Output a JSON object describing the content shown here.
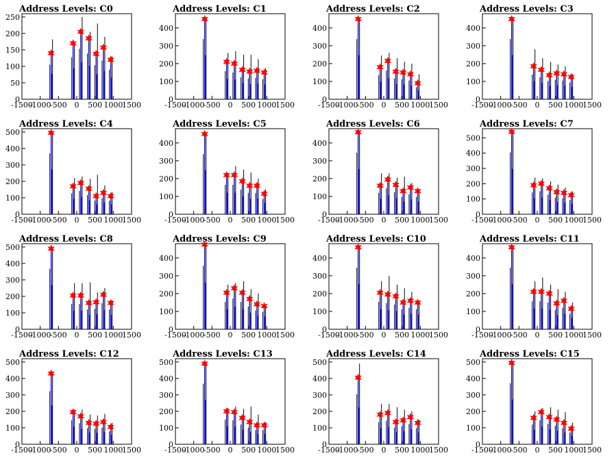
{
  "chart_data": [
    {
      "type": "bar",
      "title": "Address Levels: C0",
      "ylim": [
        0,
        260
      ],
      "yticks": [
        0,
        50,
        100,
        150,
        200,
        250
      ],
      "xlim": [
        -1500,
        1500
      ],
      "xticks": [
        -1500,
        -1000,
        -500,
        0,
        500,
        1000,
        1500
      ],
      "series": [
        {
          "x": [
            -700,
            -100,
            110,
            330,
            530,
            730,
            930
          ],
          "values": [
            140,
            170,
            205,
            185,
            138,
            157,
            120
          ],
          "spike": [
            182,
            175,
            250,
            205,
            230,
            190,
            130
          ]
        }
      ]
    },
    {
      "type": "bar",
      "title": "Address Levels: C1",
      "ylim": [
        0,
        480
      ],
      "yticks": [
        0,
        100,
        200,
        300,
        400
      ],
      "xlim": [
        -1500,
        1500
      ],
      "xticks": [
        -1500,
        -1000,
        -500,
        0,
        500,
        1000,
        1500
      ],
      "series": [
        {
          "x": [
            -700,
            -100,
            110,
            330,
            530,
            730,
            930
          ],
          "values": [
            450,
            210,
            200,
            165,
            155,
            160,
            150
          ],
          "spike": [
            460,
            260,
            270,
            250,
            250,
            225,
            175
          ]
        }
      ]
    },
    {
      "type": "bar",
      "title": "Address Levels: C2",
      "ylim": [
        0,
        480
      ],
      "yticks": [
        0,
        100,
        200,
        300,
        400
      ],
      "xlim": [
        -1500,
        1500
      ],
      "xticks": [
        -1500,
        -1000,
        -500,
        0,
        500,
        1000,
        1500
      ],
      "series": [
        {
          "x": [
            -700,
            -100,
            110,
            330,
            530,
            730,
            930
          ],
          "values": [
            450,
            180,
            215,
            155,
            150,
            140,
            90
          ],
          "spike": [
            460,
            245,
            260,
            230,
            210,
            200,
            140
          ]
        }
      ]
    },
    {
      "type": "bar",
      "title": "Address Levels: C3",
      "ylim": [
        0,
        480
      ],
      "yticks": [
        0,
        100,
        200,
        300,
        400
      ],
      "xlim": [
        -1500,
        1500
      ],
      "xticks": [
        -1500,
        -1000,
        -500,
        0,
        500,
        1000,
        1500
      ],
      "series": [
        {
          "x": [
            -700,
            -100,
            110,
            330,
            530,
            730,
            930
          ],
          "values": [
            450,
            185,
            165,
            135,
            145,
            140,
            125
          ],
          "spike": [
            460,
            280,
            230,
            210,
            195,
            185,
            140
          ]
        }
      ]
    },
    {
      "type": "bar",
      "title": "Address Levels: C4",
      "ylim": [
        0,
        520
      ],
      "yticks": [
        0,
        100,
        200,
        300,
        400,
        500
      ],
      "xlim": [
        -1500,
        1500
      ],
      "xticks": [
        -1500,
        -1000,
        -500,
        0,
        500,
        1000,
        1500
      ],
      "series": [
        {
          "x": [
            -700,
            -100,
            110,
            330,
            530,
            730,
            930
          ],
          "values": [
            495,
            170,
            190,
            155,
            110,
            130,
            110
          ],
          "spike": [
            500,
            220,
            230,
            215,
            240,
            175,
            135
          ]
        }
      ]
    },
    {
      "type": "bar",
      "title": "Address Levels: C5",
      "ylim": [
        0,
        480
      ],
      "yticks": [
        0,
        100,
        200,
        300,
        400
      ],
      "xlim": [
        -1500,
        1500
      ],
      "xticks": [
        -1500,
        -1000,
        -500,
        0,
        500,
        1000,
        1500
      ],
      "series": [
        {
          "x": [
            -700,
            -100,
            110,
            330,
            530,
            730,
            930
          ],
          "values": [
            450,
            220,
            220,
            185,
            160,
            160,
            115
          ],
          "spike": [
            460,
            225,
            270,
            250,
            235,
            200,
            140
          ]
        }
      ]
    },
    {
      "type": "bar",
      "title": "Address Levels: C6",
      "ylim": [
        0,
        480
      ],
      "yticks": [
        0,
        100,
        200,
        300,
        400
      ],
      "xlim": [
        -1500,
        1500
      ],
      "xticks": [
        -1500,
        -1000,
        -500,
        0,
        500,
        1000,
        1500
      ],
      "series": [
        {
          "x": [
            -700,
            -100,
            110,
            330,
            530,
            730,
            930
          ],
          "values": [
            460,
            160,
            195,
            165,
            130,
            150,
            130
          ],
          "spike": [
            470,
            230,
            230,
            205,
            210,
            175,
            140
          ]
        }
      ]
    },
    {
      "type": "bar",
      "title": "Address Levels: C7",
      "ylim": [
        0,
        560
      ],
      "yticks": [
        0,
        100,
        200,
        300,
        400,
        500
      ],
      "xlim": [
        -1500,
        1500
      ],
      "xticks": [
        -1500,
        -1000,
        -500,
        0,
        500,
        1000,
        1500
      ],
      "series": [
        {
          "x": [
            -700,
            -100,
            110,
            330,
            530,
            730,
            930
          ],
          "values": [
            540,
            190,
            200,
            170,
            145,
            140,
            125
          ],
          "spike": [
            550,
            240,
            235,
            215,
            195,
            175,
            150
          ]
        }
      ]
    },
    {
      "type": "bar",
      "title": "Address Levels: C8",
      "ylim": [
        0,
        520
      ],
      "yticks": [
        0,
        100,
        200,
        300,
        400,
        500
      ],
      "xlim": [
        -1500,
        1500
      ],
      "xticks": [
        -1500,
        -1000,
        -500,
        0,
        500,
        1000,
        1500
      ],
      "series": [
        {
          "x": [
            -700,
            -100,
            110,
            330,
            530,
            730,
            930
          ],
          "values": [
            490,
            205,
            205,
            160,
            165,
            210,
            160
          ],
          "spike": [
            500,
            280,
            280,
            285,
            225,
            250,
            175
          ]
        }
      ]
    },
    {
      "type": "bar",
      "title": "Address Levels: C9",
      "ylim": [
        0,
        480
      ],
      "yticks": [
        0,
        100,
        200,
        300,
        400
      ],
      "xlim": [
        -1500,
        1500
      ],
      "xticks": [
        -1500,
        -1000,
        -500,
        0,
        500,
        1000,
        1500
      ],
      "series": [
        {
          "x": [
            -700,
            -100,
            110,
            330,
            530,
            730,
            930
          ],
          "values": [
            475,
            205,
            230,
            205,
            170,
            140,
            130
          ],
          "spike": [
            480,
            250,
            260,
            270,
            225,
            200,
            140
          ]
        }
      ]
    },
    {
      "type": "bar",
      "title": "Address Levels: C10",
      "ylim": [
        0,
        480
      ],
      "yticks": [
        0,
        100,
        200,
        300,
        400
      ],
      "xlim": [
        -1500,
        1500
      ],
      "xticks": [
        -1500,
        -1000,
        -500,
        0,
        500,
        1000,
        1500
      ],
      "series": [
        {
          "x": [
            -700,
            -100,
            110,
            330,
            530,
            730,
            930
          ],
          "values": [
            460,
            205,
            195,
            185,
            150,
            160,
            150
          ],
          "spike": [
            470,
            270,
            300,
            250,
            230,
            210,
            160
          ]
        }
      ]
    },
    {
      "type": "bar",
      "title": "Address Levels: C11",
      "ylim": [
        0,
        480
      ],
      "yticks": [
        0,
        100,
        200,
        300,
        400
      ],
      "xlim": [
        -1500,
        1500
      ],
      "xticks": [
        -1500,
        -1000,
        -500,
        0,
        500,
        1000,
        1500
      ],
      "series": [
        {
          "x": [
            -700,
            -100,
            110,
            330,
            530,
            730,
            930
          ],
          "values": [
            460,
            210,
            210,
            200,
            145,
            160,
            115
          ],
          "spike": [
            470,
            270,
            290,
            250,
            225,
            210,
            150
          ]
        }
      ]
    },
    {
      "type": "bar",
      "title": "Address Levels: C12",
      "ylim": [
        0,
        520
      ],
      "yticks": [
        0,
        100,
        200,
        300,
        400,
        500
      ],
      "xlim": [
        -1500,
        1500
      ],
      "xticks": [
        -1500,
        -1000,
        -500,
        0,
        500,
        1000,
        1500
      ],
      "series": [
        {
          "x": [
            -700,
            -100,
            110,
            330,
            530,
            730,
            930
          ],
          "values": [
            430,
            195,
            170,
            130,
            125,
            135,
            105
          ],
          "spike": [
            440,
            210,
            210,
            180,
            175,
            185,
            130
          ]
        }
      ]
    },
    {
      "type": "bar",
      "title": "Address Levels: C13",
      "ylim": [
        0,
        520
      ],
      "yticks": [
        0,
        100,
        200,
        300,
        400,
        500
      ],
      "xlim": [
        -1500,
        1500
      ],
      "xticks": [
        -1500,
        -1000,
        -500,
        0,
        500,
        1000,
        1500
      ],
      "series": [
        {
          "x": [
            -700,
            -100,
            110,
            330,
            530,
            730,
            930
          ],
          "values": [
            490,
            200,
            195,
            160,
            135,
            115,
            115
          ],
          "spike": [
            500,
            220,
            230,
            215,
            230,
            180,
            135
          ]
        }
      ]
    },
    {
      "type": "bar",
      "title": "Address Levels: C14",
      "ylim": [
        0,
        520
      ],
      "yticks": [
        0,
        100,
        200,
        300,
        400,
        500
      ],
      "xlim": [
        -1500,
        1500
      ],
      "xticks": [
        -1500,
        -1000,
        -500,
        0,
        500,
        1000,
        1500
      ],
      "series": [
        {
          "x": [
            -700,
            -100,
            110,
            330,
            530,
            730,
            930
          ],
          "values": [
            405,
            180,
            190,
            135,
            145,
            165,
            130
          ],
          "spike": [
            490,
            245,
            245,
            225,
            210,
            200,
            150
          ]
        }
      ]
    },
    {
      "type": "bar",
      "title": "Address Levels: C15",
      "ylim": [
        0,
        520
      ],
      "yticks": [
        0,
        100,
        200,
        300,
        400,
        500
      ],
      "xlim": [
        -1500,
        1500
      ],
      "xticks": [
        -1500,
        -1000,
        -500,
        0,
        500,
        1000,
        1500
      ],
      "series": [
        {
          "x": [
            -700,
            -100,
            110,
            330,
            530,
            730,
            930
          ],
          "values": [
            495,
            160,
            195,
            165,
            150,
            130,
            95
          ],
          "spike": [
            500,
            200,
            220,
            225,
            210,
            195,
            130
          ]
        }
      ]
    }
  ],
  "colors": {
    "histogram": "#0000ff",
    "fill": "#000000",
    "marker": "#ff0000",
    "axis": "#000000"
  }
}
